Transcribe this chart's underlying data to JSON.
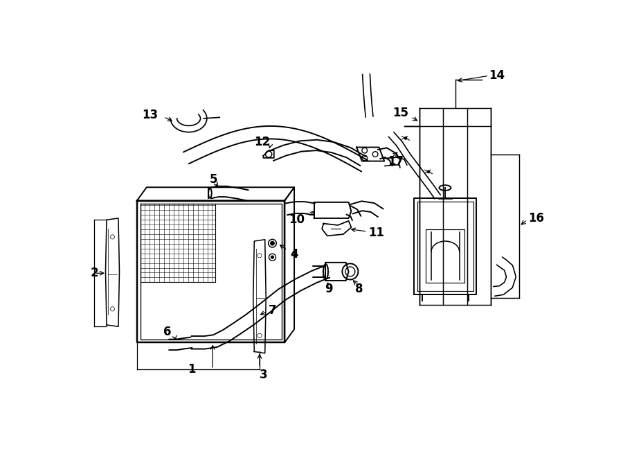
{
  "bg_color": "#ffffff",
  "line_color": "#000000",
  "fig_width": 9.0,
  "fig_height": 6.61,
  "dpi": 100,
  "lw_main": 1.4,
  "lw_hose": 2.2,
  "lw_thin": 0.7,
  "fontsize_label": 12
}
